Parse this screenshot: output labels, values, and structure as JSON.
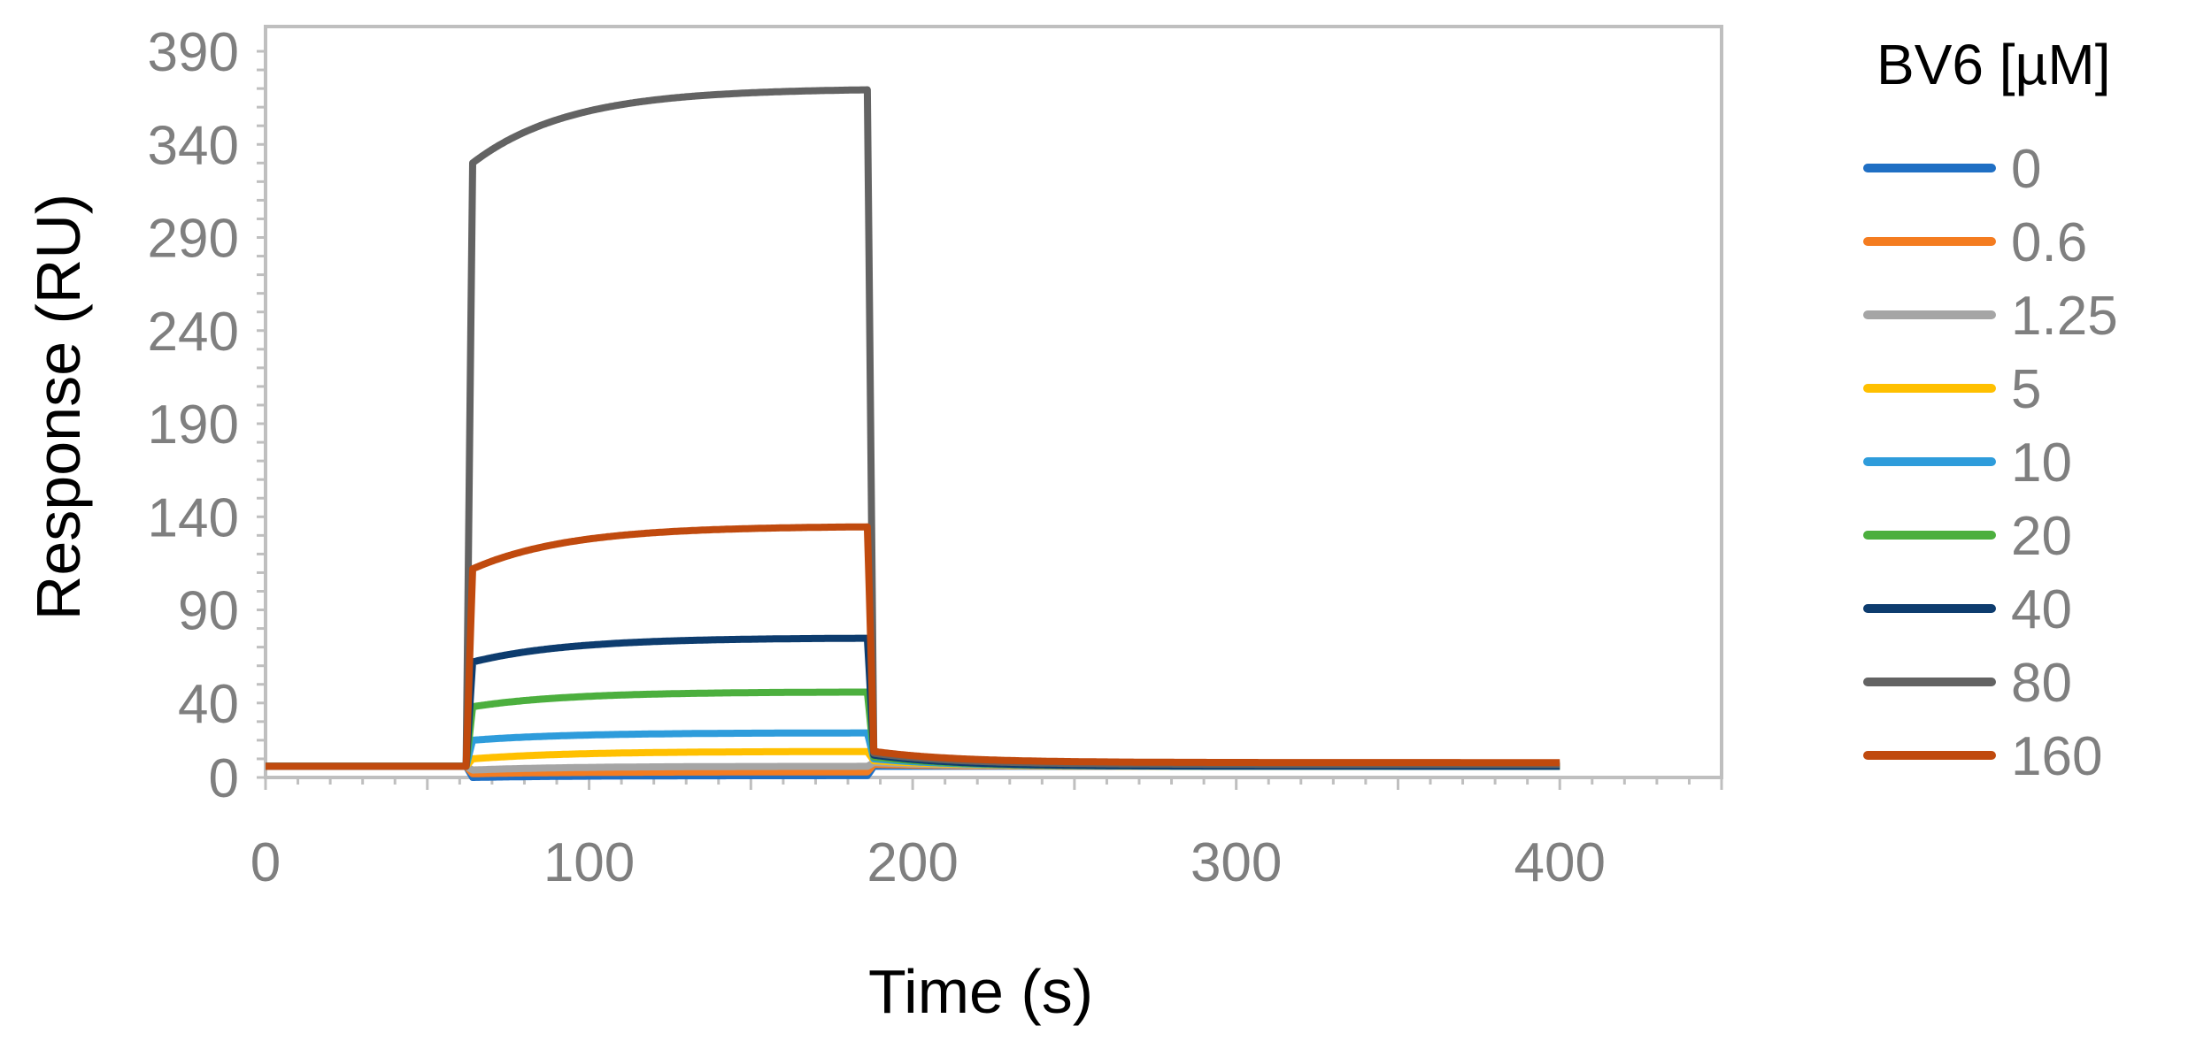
{
  "chart_data": {
    "type": "line",
    "xlabel": "Time (s)",
    "ylabel": "Response (RU)",
    "xlim": [
      0,
      450
    ],
    "ylim": [
      0,
      390
    ],
    "x_ticks": [
      0,
      100,
      200,
      300,
      400
    ],
    "y_ticks": [
      0,
      40,
      90,
      140,
      190,
      240,
      290,
      340,
      390
    ],
    "grid": false,
    "legend_title": "BV6 [µM]",
    "legend_position": "right",
    "injection": {
      "start": 62,
      "end": 186,
      "stop": 400
    },
    "series": [
      {
        "name": "0",
        "color": "#1f6fc4",
        "baseline": 6,
        "jump": 0,
        "plateau": 1,
        "post": 6,
        "tail": 6
      },
      {
        "name": "0.6",
        "color": "#f47c20",
        "baseline": 6,
        "jump": 2,
        "plateau": 3,
        "post": 7,
        "tail": 6
      },
      {
        "name": "1.25",
        "color": "#a5a5a5",
        "baseline": 6,
        "jump": 4,
        "plateau": 6,
        "post": 8,
        "tail": 6
      },
      {
        "name": "5",
        "color": "#ffc000",
        "baseline": 6,
        "jump": 10,
        "plateau": 14,
        "post": 9,
        "tail": 6
      },
      {
        "name": "10",
        "color": "#2e9cdb",
        "baseline": 6,
        "jump": 20,
        "plateau": 24,
        "post": 10,
        "tail": 6
      },
      {
        "name": "20",
        "color": "#4caf3e",
        "baseline": 6,
        "jump": 38,
        "plateau": 46,
        "post": 11,
        "tail": 6
      },
      {
        "name": "40",
        "color": "#0d3c6e",
        "baseline": 6,
        "jump": 62,
        "plateau": 75,
        "post": 12,
        "tail": 6
      },
      {
        "name": "80",
        "color": "#636363",
        "baseline": 6,
        "jump": 330,
        "plateau": 370,
        "post": 13,
        "tail": 7
      },
      {
        "name": "160",
        "color": "#c04a0e",
        "baseline": 6,
        "jump": 112,
        "plateau": 135,
        "post": 14,
        "tail": 8
      }
    ]
  }
}
